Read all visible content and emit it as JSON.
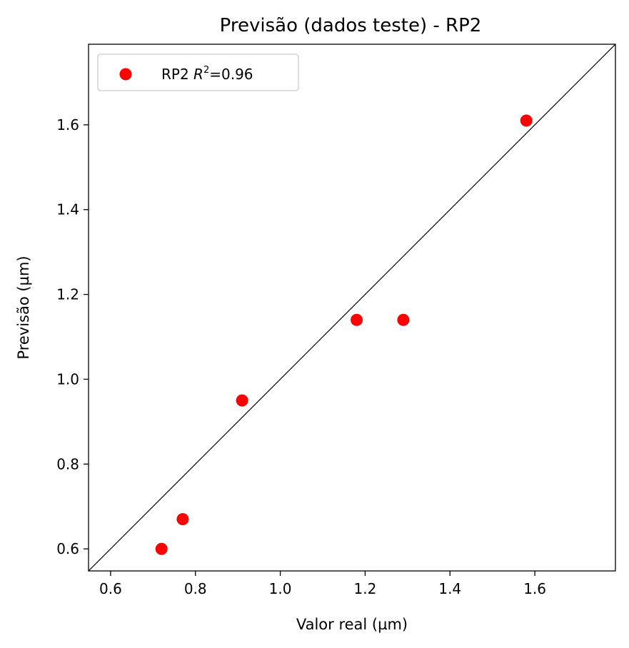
{
  "chart_data": {
    "type": "scatter",
    "title": "Previsão (dados teste) - RP2",
    "xlabel": "Valor real (µm)",
    "ylabel": "Previsão (µm)",
    "xlim": [
      0.548,
      1.79
    ],
    "ylim": [
      0.548,
      1.79
    ],
    "xticks": [
      "0.6",
      "0.8",
      "1.0",
      "1.2",
      "1.4",
      "1.6"
    ],
    "yticks": [
      "0.6",
      "0.8",
      "1.0",
      "1.2",
      "1.4",
      "1.6"
    ],
    "xtick_values": [
      0.6,
      0.8,
      1.0,
      1.2,
      1.4,
      1.6
    ],
    "ytick_values": [
      0.6,
      0.8,
      1.0,
      1.2,
      1.4,
      1.6
    ],
    "reference_line": "y = x",
    "grid": false,
    "legend_position": "top-left",
    "series": [
      {
        "name": "RP2 $R^2$=0.96",
        "color": "#ff0000",
        "x": [
          0.72,
          0.77,
          0.91,
          1.18,
          1.29,
          1.58
        ],
        "y": [
          0.6,
          0.67,
          0.95,
          1.14,
          1.14,
          1.61
        ]
      }
    ],
    "legend": {
      "prefix": "RP2 ",
      "r_symbol": "R",
      "exponent": "2",
      "suffix": "=0.96"
    },
    "line_color": "#000000"
  }
}
